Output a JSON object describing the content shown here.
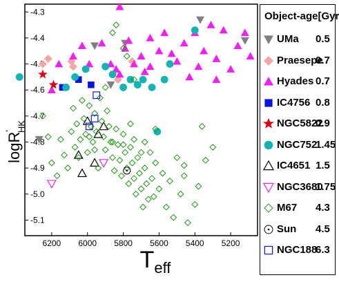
{
  "chart_data": {
    "type": "scatter",
    "xlabel_main": "T",
    "xlabel_sub": "eff",
    "ylabel_main": "logR",
    "ylabel_sup": "'",
    "ylabel_sub": "HK",
    "xlim": [
      6350,
      5050
    ],
    "ylim": [
      -5.16,
      -4.27
    ],
    "x_ticks": [
      6200,
      6000,
      5800,
      5600,
      5400,
      5200
    ],
    "x_tick_labels": [
      "6200",
      "6000",
      "5800",
      "5600",
      "5400",
      "5200"
    ],
    "y_ticks": [
      -4.3,
      -4.4,
      -4.5,
      -4.6,
      -4.7,
      -4.8,
      -4.9,
      -5.0,
      -5.1
    ],
    "y_tick_labels": [
      "-4.3",
      "-4.4",
      "-4.5",
      "-4.6",
      "-4.7",
      "-4.8",
      "-4.9",
      "-5.0",
      "-5.1"
    ],
    "legend_title": "Object-age[Gyr]",
    "legend_position": "right-outside",
    "series": [
      {
        "name": "UMa",
        "age": "0.5",
        "marker": "triangle-down-filled",
        "color": "#808080",
        "points": [
          [
            6270,
            -4.79
          ],
          [
            5960,
            -4.43
          ],
          [
            5870,
            -4.58
          ],
          [
            5790,
            -4.42
          ],
          [
            5370,
            -4.33
          ],
          [
            5120,
            -4.41
          ]
        ]
      },
      {
        "name": "Praesepe",
        "age": "0.7",
        "marker": "diamond-filled",
        "color": "#f4a6a6",
        "points": [
          [
            6250,
            -4.5
          ],
          [
            6220,
            -4.48
          ],
          [
            6090,
            -4.49
          ],
          [
            6080,
            -4.51
          ],
          [
            5830,
            -4.56
          ],
          [
            5750,
            -4.49
          ]
        ]
      },
      {
        "name": "Hyades",
        "age": "0.7",
        "marker": "triangle-up-filled",
        "color": "#f020f0",
        "points": [
          [
            6160,
            -4.5
          ],
          [
            6080,
            -4.47
          ],
          [
            6030,
            -4.43
          ],
          [
            5990,
            -4.5
          ],
          [
            5920,
            -4.42
          ],
          [
            5870,
            -4.5
          ],
          [
            5840,
            -4.52
          ],
          [
            5820,
            -4.28
          ],
          [
            5790,
            -4.44
          ],
          [
            5770,
            -4.41
          ],
          [
            5740,
            -4.5
          ],
          [
            5700,
            -4.47
          ],
          [
            5680,
            -4.53
          ],
          [
            5650,
            -4.4
          ],
          [
            5600,
            -4.45
          ],
          [
            5570,
            -4.38
          ],
          [
            5530,
            -4.46
          ],
          [
            5500,
            -4.49
          ],
          [
            5460,
            -4.42
          ],
          [
            5430,
            -4.55
          ],
          [
            5400,
            -4.38
          ],
          [
            5380,
            -4.51
          ],
          [
            5350,
            -4.45
          ],
          [
            5310,
            -4.35
          ],
          [
            5280,
            -4.48
          ],
          [
            5240,
            -4.37
          ],
          [
            5200,
            -4.52
          ],
          [
            5160,
            -4.43
          ],
          [
            5120,
            -4.38
          ],
          [
            5090,
            -4.47
          ],
          [
            5820,
            -4.54
          ],
          [
            5650,
            -4.51
          ],
          [
            5280,
            -4.56
          ],
          [
            6200,
            -4.6
          ]
        ]
      },
      {
        "name": "IC4756",
        "age": "0.8",
        "marker": "square-filled",
        "color": "#0a14e0",
        "points": [
          [
            6140,
            -4.59
          ],
          [
            6050,
            -4.56
          ],
          [
            5980,
            -4.58
          ]
        ]
      },
      {
        "name": "NGC5822",
        "age": "0.9",
        "marker": "star-filled",
        "color": "#e00010",
        "points": [
          [
            6250,
            -4.54
          ],
          [
            6190,
            -4.58
          ]
        ]
      },
      {
        "name": "NGC752",
        "age": "1.45",
        "marker": "circle-filled",
        "color": "#14b4b4",
        "points": [
          [
            6380,
            -4.55
          ],
          [
            6120,
            -4.59
          ],
          [
            6070,
            -4.55
          ],
          [
            6010,
            -4.52
          ],
          [
            5900,
            -4.51
          ],
          [
            5860,
            -4.54
          ],
          [
            5800,
            -4.59
          ],
          [
            5760,
            -4.56
          ],
          [
            5720,
            -4.58
          ],
          [
            5690,
            -4.56
          ],
          [
            5640,
            -4.59
          ],
          [
            5570,
            -4.56
          ],
          [
            5540,
            -4.5
          ],
          [
            5400,
            -4.37
          ],
          [
            5610,
            -4.76
          ]
        ]
      },
      {
        "name": "IC4651",
        "age": "1.5",
        "marker": "triangle-up-open",
        "color": "#000000",
        "points": [
          [
            6050,
            -4.85
          ],
          [
            6030,
            -4.92
          ],
          [
            5960,
            -4.88
          ],
          [
            5940,
            -4.77
          ],
          [
            5910,
            -4.74
          ],
          [
            6000,
            -4.72
          ]
        ]
      },
      {
        "name": "NGC3680",
        "age": "1.75",
        "marker": "triangle-down-open",
        "color": "#f020f0",
        "points": [
          [
            6200,
            -4.96
          ],
          [
            5910,
            -4.88
          ]
        ]
      },
      {
        "name": "M67",
        "age": "4.3",
        "marker": "diamond-open",
        "color": "#1e9614",
        "points": [
          [
            6250,
            -4.7
          ],
          [
            6220,
            -4.78
          ],
          [
            6200,
            -4.88
          ],
          [
            6170,
            -4.93
          ],
          [
            6150,
            -4.79
          ],
          [
            6130,
            -4.85
          ],
          [
            6110,
            -4.9
          ],
          [
            6090,
            -4.76
          ],
          [
            6080,
            -4.67
          ],
          [
            6070,
            -4.82
          ],
          [
            6060,
            -4.73
          ],
          [
            6050,
            -4.86
          ],
          [
            6040,
            -4.79
          ],
          [
            6030,
            -4.64
          ],
          [
            6020,
            -4.71
          ],
          [
            6010,
            -4.77
          ],
          [
            6000,
            -4.84
          ],
          [
            5990,
            -4.66
          ],
          [
            5980,
            -4.74
          ],
          [
            5970,
            -4.8
          ],
          [
            5960,
            -4.69
          ],
          [
            5950,
            -4.76
          ],
          [
            5940,
            -4.9
          ],
          [
            5930,
            -4.63
          ],
          [
            5920,
            -4.72
          ],
          [
            5910,
            -4.78
          ],
          [
            5900,
            -4.83
          ],
          [
            5890,
            -4.68
          ],
          [
            5880,
            -4.74
          ],
          [
            5870,
            -4.8
          ],
          [
            5860,
            -4.86
          ],
          [
            5850,
            -4.91
          ],
          [
            5840,
            -4.75
          ],
          [
            5830,
            -4.81
          ],
          [
            5820,
            -4.87
          ],
          [
            5810,
            -4.93
          ],
          [
            5800,
            -4.77
          ],
          [
            5790,
            -4.84
          ],
          [
            5780,
            -4.9
          ],
          [
            5770,
            -4.96
          ],
          [
            5760,
            -4.82
          ],
          [
            5750,
            -4.88
          ],
          [
            5740,
            -4.94
          ],
          [
            5730,
            -5.0
          ],
          [
            5720,
            -4.86
          ],
          [
            5710,
            -4.92
          ],
          [
            5700,
            -4.98
          ],
          [
            5690,
            -5.05
          ],
          [
            5680,
            -4.9
          ],
          [
            5670,
            -4.96
          ],
          [
            5660,
            -5.02
          ],
          [
            5650,
            -4.84
          ],
          [
            5640,
            -4.94
          ],
          [
            5630,
            -5.01
          ],
          [
            5620,
            -4.88
          ],
          [
            5600,
            -4.98
          ],
          [
            5580,
            -4.92
          ],
          [
            5560,
            -5.05
          ],
          [
            5540,
            -4.95
          ],
          [
            5520,
            -5.09
          ],
          [
            5500,
            -4.86
          ],
          [
            5480,
            -5.0
          ],
          [
            5460,
            -4.93
          ],
          [
            5440,
            -5.11
          ],
          [
            5400,
            -5.04
          ],
          [
            5380,
            -4.97
          ],
          [
            5360,
            -4.74
          ],
          [
            5340,
            -4.87
          ],
          [
            5300,
            -4.82
          ],
          [
            5900,
            -4.59
          ],
          [
            5860,
            -4.38
          ],
          [
            5840,
            -4.35
          ],
          [
            5800,
            -4.44
          ],
          [
            5780,
            -4.47
          ],
          [
            5740,
            -4.56
          ],
          [
            5680,
            -4.8
          ],
          [
            5620,
            -4.75
          ],
          [
            5460,
            -4.89
          ],
          [
            5760,
            -4.73
          ],
          [
            5740,
            -4.79
          ],
          [
            5700,
            -4.84
          ],
          [
            5800,
            -4.81
          ],
          [
            5960,
            -4.83
          ],
          [
            5990,
            -4.78
          ],
          [
            5860,
            -4.8
          ]
        ]
      },
      {
        "name": "Sun",
        "age": "4.5",
        "marker": "sun",
        "color": "#000000",
        "points": [
          [
            5780,
            -4.91
          ]
        ]
      },
      {
        "name": "NGC188",
        "age": "6.3",
        "marker": "square-open",
        "color": "#0a14e0",
        "points": [
          [
            5950,
            -4.62
          ],
          [
            5960,
            -4.71
          ],
          [
            5990,
            -4.74
          ]
        ]
      }
    ]
  }
}
